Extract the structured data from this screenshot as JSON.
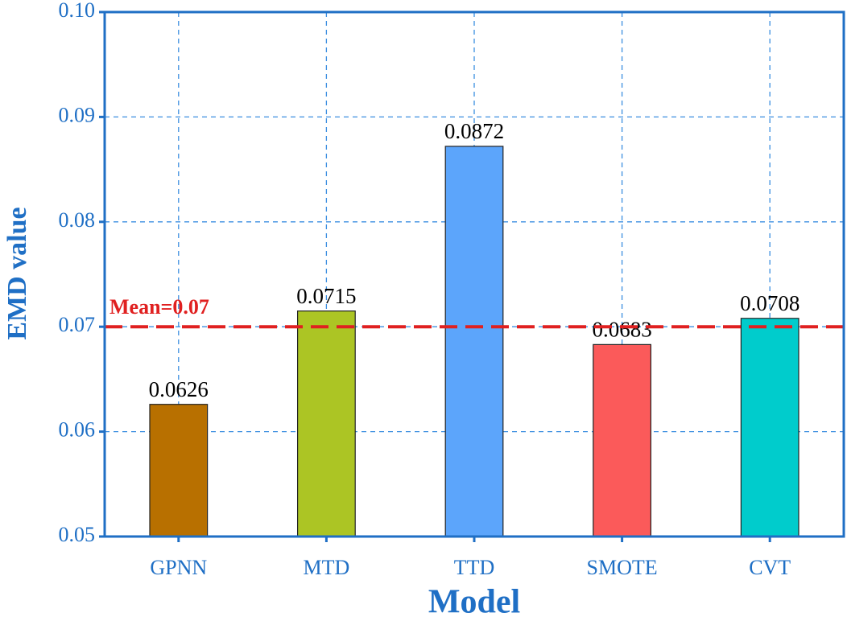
{
  "chart_data": {
    "type": "bar",
    "x_label": "Model",
    "y_label": "EMD value",
    "categories": [
      "GPNN",
      "MTD",
      "TTD",
      "SMOTE",
      "CVT"
    ],
    "values": [
      0.0626,
      0.0715,
      0.0872,
      0.0683,
      0.0708
    ],
    "colors": [
      "#b87000",
      "#acc524",
      "#5ca5fb",
      "#fb5a5a",
      "#00cccc"
    ],
    "ylim": [
      0.05,
      0.1
    ],
    "yticks": [
      0.05,
      0.06,
      0.07,
      0.08,
      0.09,
      {
        "value": 0.1,
        "label": "0.10"
      }
    ],
    "grid": true,
    "mean": 0.07,
    "mean_label": "Mean=0.07",
    "mean_color": "#e02020"
  }
}
